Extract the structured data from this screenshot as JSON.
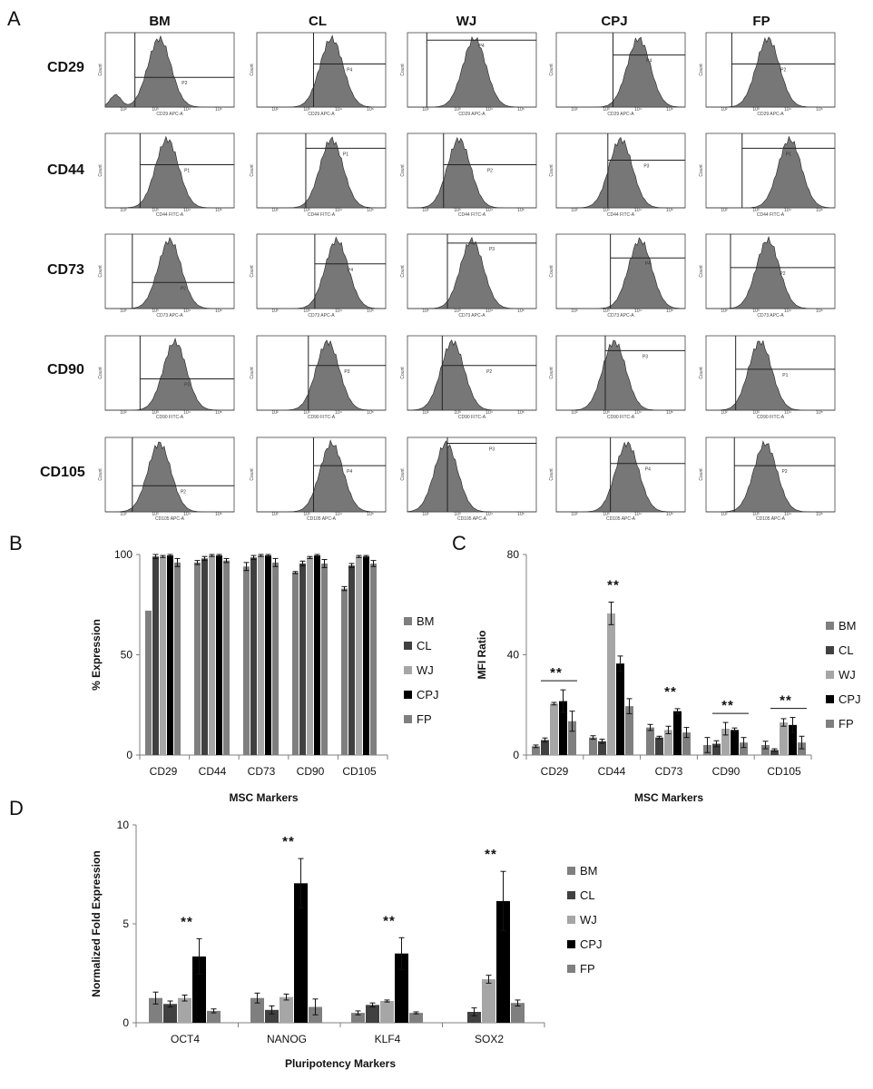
{
  "panel_labels": {
    "A": "A",
    "B": "B",
    "C": "C",
    "D": "D"
  },
  "flow_panel": {
    "columns": [
      "BM",
      "CL",
      "WJ",
      "CPJ",
      "FP"
    ],
    "rows": [
      "CD29",
      "CD44",
      "CD73",
      "CD90",
      "CD105"
    ],
    "y_axis_label": "Count",
    "x_axis_labels": [
      "CD29 APC-A",
      "CD44 FITC-A",
      "CD73 APC-A",
      "CD90 FITC-A",
      "CD105 APC-A"
    ],
    "gate_labels": [
      [
        "P2",
        "P4",
        "P4",
        "P4",
        "P2"
      ],
      [
        "P1",
        "P1",
        "P2",
        "P3",
        "P1"
      ],
      [
        "P2",
        "P4",
        "P3",
        "P4",
        "P2"
      ],
      [
        "P3",
        "P3",
        "P2",
        "P3",
        "P1"
      ],
      [
        "P2",
        "P4",
        "P3",
        "P4",
        "P2"
      ]
    ],
    "tick_labels": [
      "10²",
      "10³",
      "10⁴",
      "10⁵"
    ]
  },
  "chart_data": [
    {
      "id": "B",
      "type": "bar",
      "categories": [
        "CD29",
        "CD44",
        "CD73",
        "CD90",
        "CD105"
      ],
      "series": [
        {
          "name": "BM",
          "color": "#7f7f7f",
          "values": [
            72,
            96,
            94,
            91,
            83
          ],
          "errors": [
            0,
            1,
            2,
            0.5,
            1
          ]
        },
        {
          "name": "CL",
          "color": "#404040",
          "values": [
            99,
            98,
            98.5,
            95.5,
            94.5
          ],
          "errors": [
            1,
            1,
            1,
            1.2,
            1
          ]
        },
        {
          "name": "WJ",
          "color": "#a6a6a6",
          "values": [
            99,
            99.5,
            99.5,
            98.5,
            99
          ],
          "errors": [
            0.5,
            0.5,
            0.5,
            0.5,
            0.5
          ]
        },
        {
          "name": "CPJ",
          "color": "#000000",
          "values": [
            99.5,
            99.5,
            99.5,
            99.5,
            99
          ],
          "errors": [
            0.5,
            0.5,
            0.5,
            0.5,
            0.5
          ]
        },
        {
          "name": "FP",
          "color": "#7f7f7f",
          "values": [
            96,
            97,
            96,
            95.5,
            95.5
          ],
          "errors": [
            2,
            1,
            2,
            2,
            1.5
          ]
        }
      ],
      "title": "",
      "xlabel": "MSC Markers",
      "ylabel": "% Expression",
      "ylim": [
        0,
        100
      ],
      "yticks": [
        0,
        50,
        100
      ],
      "legend": [
        "BM",
        "CL",
        "WJ",
        "CPJ",
        "FP"
      ]
    },
    {
      "id": "C",
      "type": "bar",
      "categories": [
        "CD29",
        "CD44",
        "CD73",
        "CD90",
        "CD105"
      ],
      "series": [
        {
          "name": "BM",
          "color": "#7f7f7f",
          "values": [
            3.5,
            7,
            11,
            4,
            4
          ],
          "errors": [
            0.5,
            0.7,
            1.2,
            3,
            1.5
          ]
        },
        {
          "name": "CL",
          "color": "#404040",
          "values": [
            6,
            5.5,
            7,
            4.5,
            2
          ],
          "errors": [
            0.8,
            0.8,
            0.5,
            1.2,
            0.5
          ]
        },
        {
          "name": "WJ",
          "color": "#a6a6a6",
          "values": [
            20.5,
            56.5,
            10,
            10.5,
            13
          ],
          "errors": [
            0.5,
            4.5,
            1.5,
            2.5,
            1.5
          ]
        },
        {
          "name": "CPJ",
          "color": "#000000",
          "values": [
            21.5,
            36.5,
            17.5,
            10,
            12
          ],
          "errors": [
            4.5,
            3,
            1,
            0.8,
            3
          ]
        },
        {
          "name": "FP",
          "color": "#7f7f7f",
          "values": [
            13.5,
            19.5,
            9,
            5,
            5
          ],
          "errors": [
            4,
            3,
            2,
            2,
            2.5
          ]
        }
      ],
      "significance": [
        {
          "category": "CD29",
          "label": "**",
          "bracket": true
        },
        {
          "category": "CD44",
          "label": "**",
          "bracket": false
        },
        {
          "category": "CD73",
          "label": "**",
          "bracket": false
        },
        {
          "category": "CD90",
          "label": "**",
          "bracket": true
        },
        {
          "category": "CD105",
          "label": "**",
          "bracket": true
        }
      ],
      "title": "",
      "xlabel": "MSC Markers",
      "ylabel": "MFI Ratio",
      "ylim": [
        0,
        80
      ],
      "yticks": [
        0,
        40,
        80
      ],
      "legend": [
        "BM",
        "CL",
        "WJ",
        "CPJ",
        "FP"
      ]
    },
    {
      "id": "D",
      "type": "bar",
      "categories": [
        "OCT4",
        "NANOG",
        "KLF4",
        "SOX2"
      ],
      "series": [
        {
          "name": "BM",
          "color": "#7f7f7f",
          "values": [
            1.25,
            1.25,
            0.5,
            null
          ],
          "errors": [
            0.3,
            0.25,
            0.1,
            0
          ]
        },
        {
          "name": "CL",
          "color": "#404040",
          "values": [
            0.95,
            0.65,
            0.9,
            0.55
          ],
          "errors": [
            0.15,
            0.2,
            0.1,
            0.2
          ]
        },
        {
          "name": "WJ",
          "color": "#a6a6a6",
          "values": [
            1.25,
            1.3,
            1.1,
            2.2
          ],
          "errors": [
            0.15,
            0.15,
            0.05,
            0.2
          ]
        },
        {
          "name": "CPJ",
          "color": "#000000",
          "values": [
            3.35,
            7.05,
            3.5,
            6.15
          ],
          "errors": [
            0.9,
            1.25,
            0.8,
            1.5
          ]
        },
        {
          "name": "FP",
          "color": "#7f7f7f",
          "values": [
            0.6,
            0.8,
            0.5,
            1.0
          ],
          "errors": [
            0.1,
            0.4,
            0.05,
            0.15
          ]
        }
      ],
      "significance": [
        {
          "category": "OCT4",
          "label": "**"
        },
        {
          "category": "NANOG",
          "label": "**"
        },
        {
          "category": "KLF4",
          "label": "**"
        },
        {
          "category": "SOX2",
          "label": "**"
        }
      ],
      "title": "",
      "xlabel": "Pluripotency Markers",
      "ylabel": "Normalized Fold Expression",
      "ylim": [
        0,
        10
      ],
      "yticks": [
        0,
        5,
        10
      ],
      "legend": [
        "BM",
        "CL",
        "WJ",
        "CPJ",
        "FP"
      ]
    }
  ]
}
